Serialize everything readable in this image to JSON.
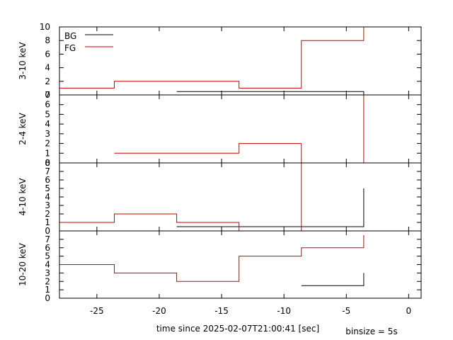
{
  "chart_data": {
    "type": "line",
    "xlabel": "time since 2025-02-07T21:00:41 [sec]",
    "annotation": "binsize = 5s",
    "xlim": [
      -28,
      1
    ],
    "xticks": [
      -25,
      -20,
      -15,
      -10,
      -5,
      0
    ],
    "x_tick_labels": [
      "-25",
      "-20",
      "-15",
      "-10",
      "-5",
      "0"
    ],
    "legend": {
      "placement": "top-left",
      "entries": [
        "BG",
        "FG"
      ]
    },
    "colors": {
      "BG": "#000000",
      "FG": "#cc0000"
    },
    "panels": [
      {
        "ylabel": "3-10 keV",
        "ylim": [
          0,
          10
        ],
        "yticks": [
          0,
          2,
          4,
          6,
          8,
          10
        ],
        "y_tick_labels": [
          "0",
          "2",
          "4",
          "6",
          "8",
          "10"
        ],
        "series": [
          {
            "name": "BG",
            "x": [
              -18.6,
              -13.6,
              -8.6,
              -3.6
            ],
            "y": [
              0.5,
              0.5,
              0.5,
              0.5
            ],
            "end": 0
          },
          {
            "name": "FG",
            "x": [
              -28,
              -23.6,
              -18.6,
              -13.6,
              -8.6,
              -3.6
            ],
            "y": [
              1,
              2,
              2,
              1,
              8,
              8
            ],
            "end": 10
          }
        ]
      },
      {
        "ylabel": "2-4 keV",
        "ylim": [
          0,
          7
        ],
        "yticks": [
          0,
          1,
          2,
          3,
          4,
          5,
          6,
          7
        ],
        "y_tick_labels": [
          "0",
          "1",
          "2",
          "3",
          "4",
          "5",
          "6",
          "7"
        ],
        "series": [
          {
            "name": "BG",
            "x": [],
            "y": [],
            "end": null
          },
          {
            "name": "FG",
            "x": [
              -23.6,
              -18.6,
              -13.6,
              -8.6,
              -3.6
            ],
            "y": [
              1,
              1,
              2,
              0,
              0
            ],
            "end": 7
          }
        ]
      },
      {
        "ylabel": "4-10 keV",
        "ylim": [
          0,
          8
        ],
        "yticks": [
          0,
          1,
          2,
          3,
          4,
          5,
          6,
          7,
          8
        ],
        "y_tick_labels": [
          "0",
          "1",
          "2",
          "3",
          "4",
          "5",
          "6",
          "7",
          "8"
        ],
        "series": [
          {
            "name": "BG",
            "x": [
              -18.6,
              -13.6,
              -8.6,
              -3.6
            ],
            "y": [
              0.5,
              0.5,
              0.5,
              0.5
            ],
            "end": 5
          },
          {
            "name": "FG",
            "x": [
              -28,
              -23.6,
              -18.6,
              -13.6,
              -8.6
            ],
            "y": [
              1,
              2,
              1,
              0,
              0
            ],
            "end": 8
          }
        ]
      },
      {
        "ylabel": "10-20 keV",
        "ylim": [
          0,
          8
        ],
        "yticks": [
          0,
          1,
          2,
          3,
          4,
          5,
          6,
          7
        ],
        "y_tick_labels": [
          "0",
          "1",
          "2",
          "3",
          "4",
          "5",
          "6",
          "7"
        ],
        "series": [
          {
            "name": "BG",
            "x": [
              -8.6,
              -3.6
            ],
            "y": [
              1.5,
              1.5
            ],
            "end": 3
          },
          {
            "name": "FG",
            "x": [
              -28,
              -23.6,
              -18.6,
              -13.6,
              -8.6,
              -3.6
            ],
            "y": [
              4,
              3,
              2,
              5,
              6,
              6
            ],
            "end": 7.5
          }
        ]
      }
    ]
  }
}
